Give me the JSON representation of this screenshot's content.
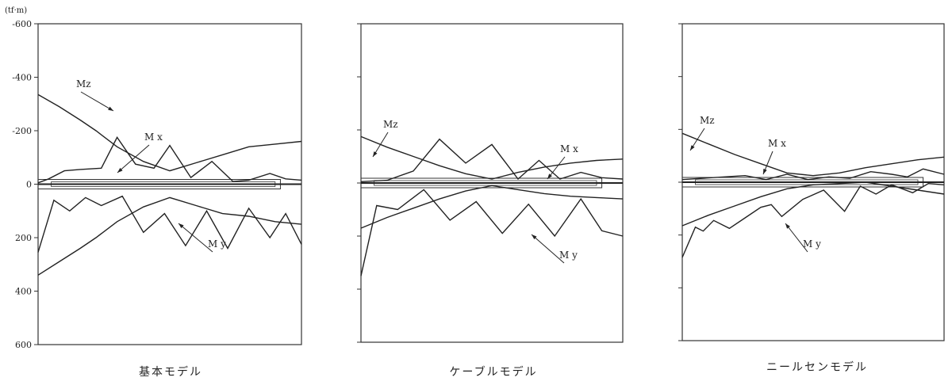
{
  "figure": {
    "unit_label": "(tf·m)"
  },
  "chart_data": [
    {
      "type": "line",
      "title": "基本モデル",
      "ylim": [
        -600,
        600
      ],
      "yticks": [
        -600,
        -400,
        -200,
        0,
        200,
        400,
        600
      ],
      "ytick_labels": [
        "-600",
        "-400",
        "-200",
        "0",
        "200",
        "400",
        "600"
      ],
      "grid": false,
      "series": [
        {
          "name": "Mz",
          "x": [
            0,
            0.08,
            0.16,
            0.22,
            0.3,
            0.4,
            0.5,
            0.6,
            0.7,
            0.8,
            0.9,
            1.0
          ],
          "y": [
            -335,
            -290,
            -240,
            -200,
            -140,
            -85,
            -50,
            -80,
            -110,
            -140,
            -150,
            -160
          ]
        },
        {
          "name": "Mz",
          "x": [
            0,
            0.08,
            0.16,
            0.22,
            0.3,
            0.4,
            0.5,
            0.6,
            0.7,
            0.8,
            0.9,
            1.0
          ],
          "y": [
            340,
            290,
            240,
            200,
            140,
            85,
            50,
            80,
            110,
            120,
            140,
            150
          ]
        },
        {
          "name": "My",
          "x": [
            0,
            0.04,
            0.1,
            0.16,
            0.24,
            0.3,
            0.37,
            0.44,
            0.5,
            0.58,
            0.66,
            0.74,
            0.8,
            0.88,
            0.94,
            1.0
          ],
          "y": [
            -5,
            -20,
            -50,
            -55,
            -60,
            -175,
            -75,
            -60,
            -145,
            -25,
            -85,
            -10,
            -15,
            -40,
            -20,
            -15
          ]
        },
        {
          "name": "My",
          "x": [
            0,
            0.06,
            0.12,
            0.18,
            0.24,
            0.32,
            0.4,
            0.48,
            0.56,
            0.64,
            0.72,
            0.8,
            0.88,
            0.94,
            1.0
          ],
          "y": [
            255,
            60,
            100,
            50,
            80,
            45,
            180,
            110,
            230,
            100,
            240,
            90,
            200,
            110,
            225
          ]
        }
      ],
      "annotations": [
        {
          "text": "Mz"
        },
        {
          "text": "M x"
        },
        {
          "text": "M y"
        }
      ]
    },
    {
      "type": "line",
      "title": "ケーブルモデル",
      "ylim": [
        -600,
        600
      ],
      "yticks": [
        -600,
        -400,
        -200,
        0,
        200,
        400,
        600
      ],
      "ytick_labels": [
        "",
        "",
        "",
        "",
        "",
        "",
        ""
      ],
      "grid": false,
      "series": [
        {
          "name": "Mz",
          "x": [
            0,
            0.1,
            0.2,
            0.3,
            0.4,
            0.5,
            0.6,
            0.7,
            0.8,
            0.9,
            1.0
          ],
          "y": [
            -175,
            -135,
            -100,
            -65,
            -35,
            -15,
            -40,
            -60,
            -75,
            -85,
            -90
          ]
        },
        {
          "name": "Mz",
          "x": [
            0,
            0.1,
            0.2,
            0.3,
            0.4,
            0.5,
            0.6,
            0.7,
            0.8,
            0.9,
            1.0
          ],
          "y": [
            170,
            130,
            95,
            60,
            30,
            10,
            25,
            40,
            50,
            55,
            60
          ]
        },
        {
          "name": "My",
          "x": [
            0,
            0.1,
            0.2,
            0.3,
            0.4,
            0.5,
            0.6,
            0.68,
            0.76,
            0.84,
            0.92,
            1.0
          ],
          "y": [
            -5,
            -10,
            -45,
            -165,
            -75,
            -145,
            -15,
            -85,
            -15,
            -40,
            -20,
            -15
          ]
        },
        {
          "name": "My",
          "x": [
            0,
            0.06,
            0.14,
            0.24,
            0.34,
            0.44,
            0.54,
            0.64,
            0.74,
            0.84,
            0.92,
            1.0
          ],
          "y": [
            350,
            85,
            100,
            25,
            140,
            70,
            190,
            80,
            200,
            60,
            180,
            200
          ]
        }
      ],
      "annotations": [
        {
          "text": "Mz"
        },
        {
          "text": "M x"
        },
        {
          "text": "M y"
        }
      ]
    },
    {
      "type": "line",
      "title": "ニールセンモデル",
      "ylim": [
        -600,
        600
      ],
      "yticks": [
        -600,
        -400,
        -200,
        0,
        200,
        400,
        600
      ],
      "ytick_labels": [
        "",
        "",
        "",
        "",
        "",
        "",
        ""
      ],
      "grid": false,
      "series": [
        {
          "name": "Mz",
          "x": [
            0,
            0.1,
            0.2,
            0.3,
            0.4,
            0.5,
            0.6,
            0.7,
            0.8,
            0.9,
            1.0
          ],
          "y": [
            -185,
            -145,
            -105,
            -70,
            -35,
            -25,
            -35,
            -55,
            -70,
            -85,
            -95
          ]
        },
        {
          "name": "Mz",
          "x": [
            0,
            0.1,
            0.2,
            0.3,
            0.4,
            0.5,
            0.6,
            0.7,
            0.8,
            0.9,
            1.0
          ],
          "y": [
            165,
            125,
            90,
            55,
            25,
            10,
            5,
            0,
            15,
            30,
            45
          ]
        },
        {
          "name": "My",
          "x": [
            0,
            0.08,
            0.16,
            0.24,
            0.32,
            0.4,
            0.48,
            0.56,
            0.64,
            0.72,
            0.8,
            0.86,
            0.92,
            1.0
          ],
          "y": [
            -10,
            -15,
            -20,
            -25,
            -10,
            -30,
            -10,
            -20,
            -15,
            -40,
            -30,
            -20,
            -50,
            -30
          ]
        },
        {
          "name": "My",
          "x": [
            0,
            0.05,
            0.08,
            0.12,
            0.18,
            0.24,
            0.3,
            0.34,
            0.38,
            0.46,
            0.54,
            0.62,
            0.68,
            0.74,
            0.8,
            0.88,
            0.94,
            1.0
          ],
          "y": [
            285,
            170,
            185,
            145,
            175,
            135,
            95,
            85,
            130,
            65,
            30,
            110,
            15,
            45,
            10,
            40,
            5,
            10
          ]
        }
      ],
      "annotations": [
        {
          "text": "Mz"
        },
        {
          "text": "M x"
        },
        {
          "text": "M y"
        }
      ]
    }
  ]
}
